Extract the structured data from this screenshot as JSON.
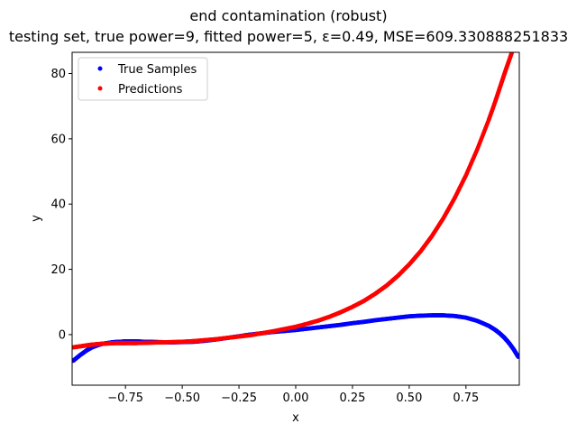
{
  "chart_data": {
    "type": "scatter",
    "title": "end contamination (robust)",
    "subtitle": "testing set, true power=9, fitted power=5, ε=0.49, MSE=609.330888251833",
    "xlabel": "x",
    "ylabel": "y",
    "xlim": [
      -0.985,
      0.985
    ],
    "ylim": [
      -15.5,
      86.5
    ],
    "xticks": [
      -0.75,
      -0.5,
      -0.25,
      0.0,
      0.25,
      0.5,
      0.75
    ],
    "xtick_labels": [
      "−0.75",
      "−0.50",
      "−0.25",
      "0.00",
      "0.25",
      "0.50",
      "0.75"
    ],
    "yticks": [
      0,
      20,
      40,
      60,
      80
    ],
    "ytick_labels": [
      "0",
      "20",
      "40",
      "60",
      "80"
    ],
    "grid": false,
    "legend_position": "top-left",
    "series": [
      {
        "name": "True Samples",
        "color": "#0000ff",
        "x": [
          -0.98,
          -0.95,
          -0.92,
          -0.9,
          -0.87,
          -0.85,
          -0.82,
          -0.8,
          -0.77,
          -0.75,
          -0.72,
          -0.7,
          -0.67,
          -0.65,
          -0.6,
          -0.55,
          -0.5,
          -0.45,
          -0.4,
          -0.35,
          -0.3,
          -0.25,
          -0.2,
          -0.15,
          -0.1,
          -0.05,
          0.0,
          0.05,
          0.1,
          0.15,
          0.2,
          0.25,
          0.3,
          0.35,
          0.4,
          0.45,
          0.5,
          0.55,
          0.6,
          0.65,
          0.7,
          0.75,
          0.8,
          0.85,
          0.88,
          0.9,
          0.92,
          0.94,
          0.96,
          0.98
        ],
        "y": [
          -8.0,
          -6.3,
          -4.8,
          -4.0,
          -3.2,
          -2.8,
          -2.5,
          -2.3,
          -2.2,
          -2.1,
          -2.1,
          -2.1,
          -2.2,
          -2.2,
          -2.3,
          -2.4,
          -2.3,
          -2.2,
          -1.9,
          -1.5,
          -1.0,
          -0.5,
          0.0,
          0.4,
          0.8,
          1.1,
          1.4,
          1.8,
          2.2,
          2.6,
          3.0,
          3.5,
          3.9,
          4.4,
          4.8,
          5.2,
          5.6,
          5.8,
          5.9,
          5.9,
          5.7,
          5.2,
          4.2,
          2.7,
          1.4,
          0.3,
          -1.0,
          -2.6,
          -4.5,
          -6.8
        ]
      },
      {
        "name": "Predictions",
        "color": "#ff0000",
        "x": [
          -0.98,
          -0.95,
          -0.92,
          -0.9,
          -0.87,
          -0.85,
          -0.82,
          -0.8,
          -0.77,
          -0.75,
          -0.72,
          -0.7,
          -0.65,
          -0.6,
          -0.55,
          -0.5,
          -0.45,
          -0.4,
          -0.35,
          -0.3,
          -0.25,
          -0.2,
          -0.15,
          -0.1,
          -0.05,
          0.0,
          0.05,
          0.1,
          0.15,
          0.2,
          0.25,
          0.3,
          0.35,
          0.4,
          0.45,
          0.5,
          0.55,
          0.6,
          0.65,
          0.7,
          0.75,
          0.8,
          0.85,
          0.88,
          0.9,
          0.92,
          0.94,
          0.96,
          0.98
        ],
        "y": [
          -3.9,
          -3.6,
          -3.3,
          -3.1,
          -2.9,
          -2.8,
          -2.7,
          -2.6,
          -2.6,
          -2.6,
          -2.6,
          -2.6,
          -2.5,
          -2.4,
          -2.3,
          -2.2,
          -2.0,
          -1.7,
          -1.4,
          -1.0,
          -0.6,
          -0.2,
          0.4,
          1.0,
          1.7,
          2.4,
          3.3,
          4.3,
          5.5,
          6.9,
          8.5,
          10.3,
          12.5,
          15.0,
          18.0,
          21.5,
          25.5,
          30.2,
          35.6,
          41.8,
          48.8,
          56.8,
          65.7,
          71.6,
          75.8,
          80.0,
          84.0,
          88.0,
          92.0
        ]
      }
    ]
  }
}
